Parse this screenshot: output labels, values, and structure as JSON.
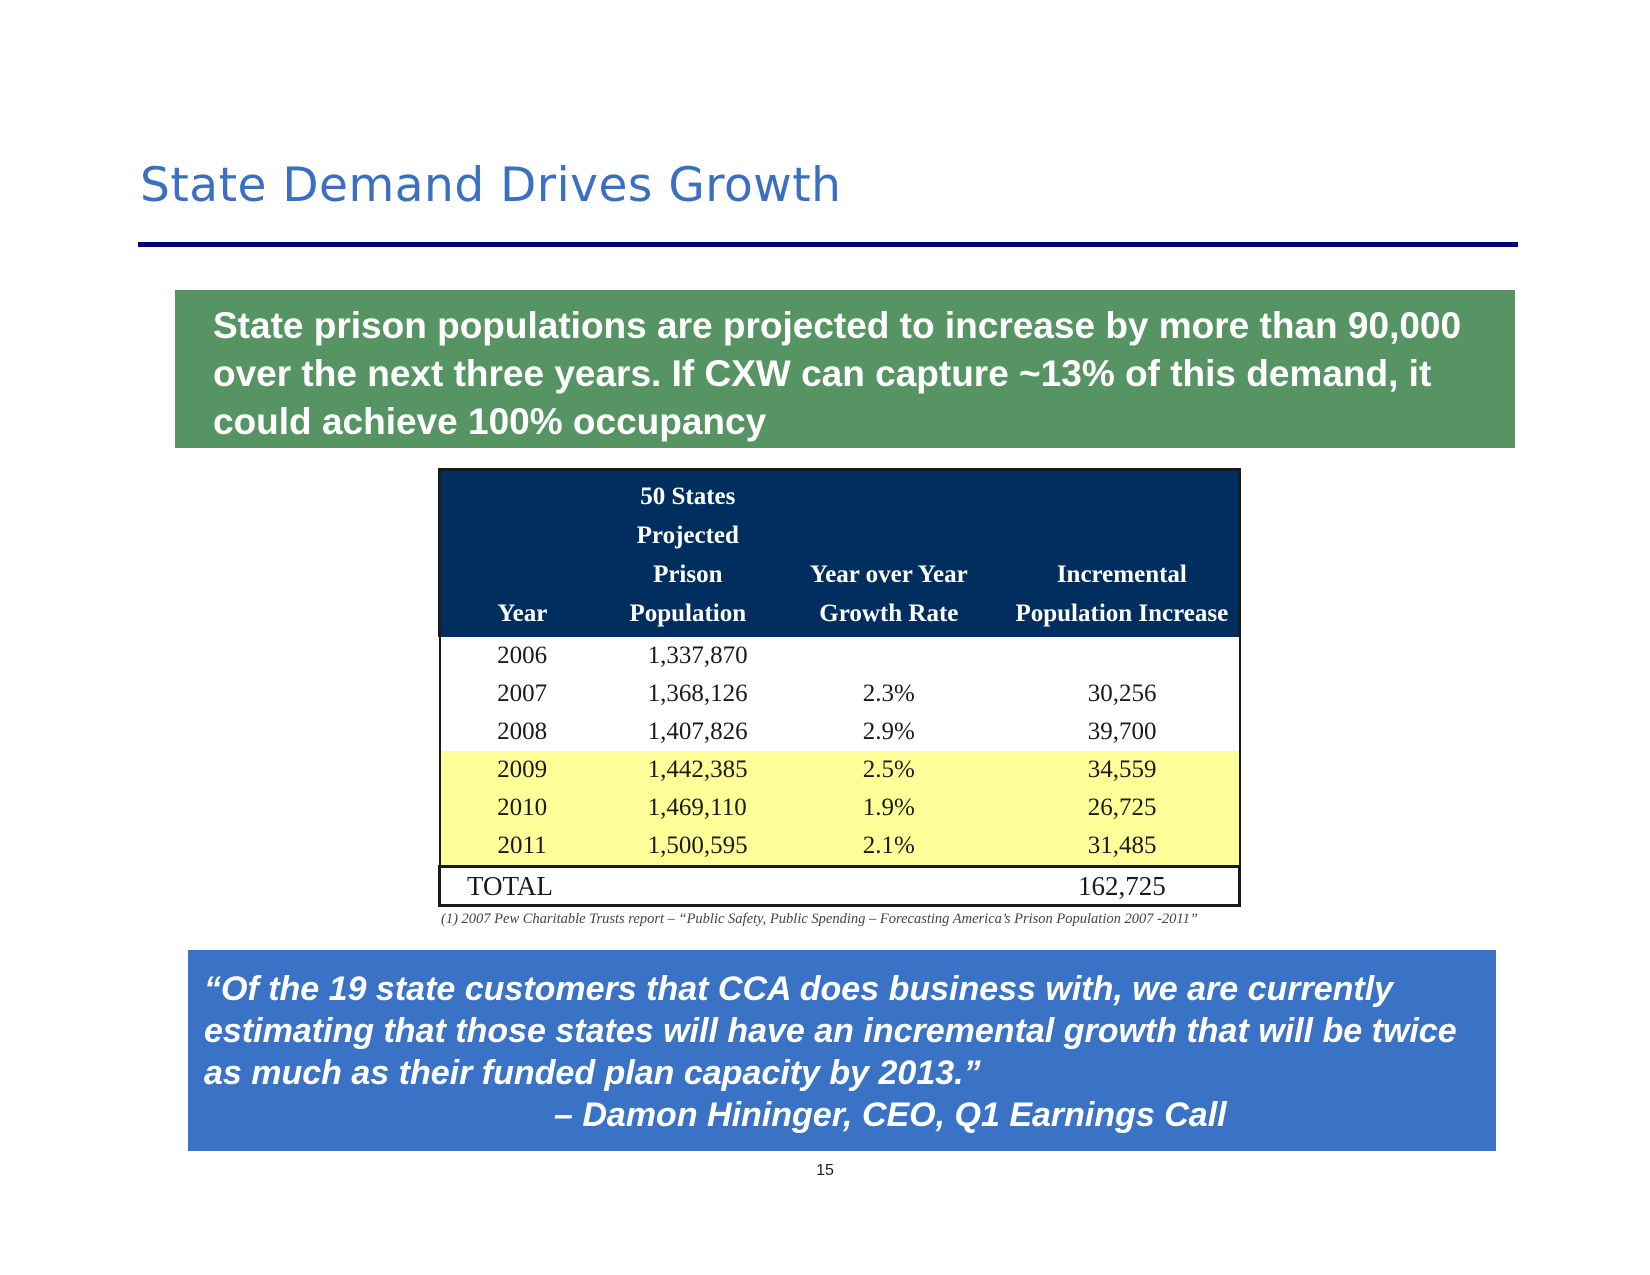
{
  "slide": {
    "title": "State Demand Drives Growth",
    "page_number": "15"
  },
  "callout": {
    "text": "State prison populations are projected to increase by more than 90,000 over the next three years. If CXW can capture ~13% of this demand, it could achieve 100% occupancy"
  },
  "table": {
    "headers": {
      "year": "Year",
      "population": "50 States Projected Prison Population",
      "growth_rate": "Year over Year Growth Rate",
      "increase": "Incremental Population Increase"
    },
    "rows": [
      {
        "year": "2006",
        "population": "1,337,870",
        "growth_rate": "",
        "increase": ""
      },
      {
        "year": "2007",
        "population": "1,368,126",
        "growth_rate": "2.3%",
        "increase": "30,256"
      },
      {
        "year": "2008",
        "population": "1,407,826",
        "growth_rate": "2.9%",
        "increase": "39,700"
      },
      {
        "year": "2009",
        "population": "1,442,385",
        "growth_rate": "2.5%",
        "increase": "34,559"
      },
      {
        "year": "2010",
        "population": "1,469,110",
        "growth_rate": "1.9%",
        "increase": "26,725"
      },
      {
        "year": "2011",
        "population": "1,500,595",
        "growth_rate": "2.1%",
        "increase": "31,485"
      }
    ],
    "total": {
      "label": "TOTAL",
      "value": "162,725"
    },
    "footnote": "(1)  2007 Pew Charitable Trusts report – “Public Safety, Public Spending – Forecasting America’s Prison Population 2007 -2011”"
  },
  "quote": {
    "text": "“Of the 19 state customers that CCA does business with, we are currently estimating that those states will have an incremental growth that will be twice as much as their funded plan capacity by 2013.”",
    "attribution": "– Damon Hininger, CEO, Q1 Earnings Call"
  },
  "colors": {
    "title": "#3a6fc2",
    "rule": "#00007a",
    "callout_bg": "#569463",
    "table_header_bg": "#002f5f",
    "highlight": "#ffff99",
    "quote_bg": "#3a73c6"
  }
}
